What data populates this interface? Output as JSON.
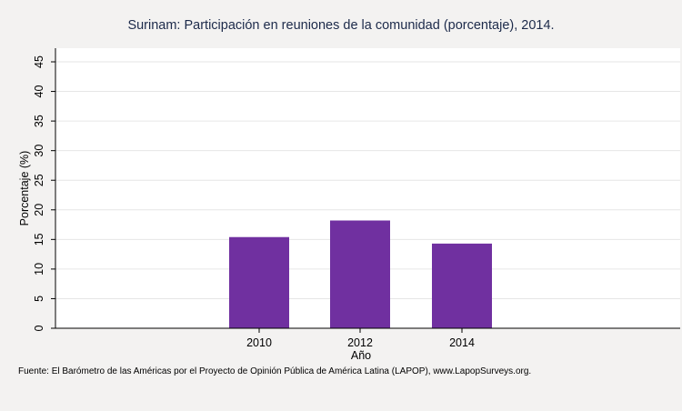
{
  "chart_data": {
    "type": "bar",
    "title": "Surinam: Participación en reuniones de la comunidad (porcentaje), 2014.",
    "xlabel": "Año",
    "ylabel": "Porcentaje (%)",
    "categories": [
      "2010",
      "2012",
      "2014"
    ],
    "values": [
      15.4,
      18.2,
      14.3
    ],
    "ylim": [
      0,
      45
    ],
    "yticks": [
      "0",
      "5",
      "10",
      "15",
      "20",
      "25",
      "30",
      "35",
      "40",
      "45"
    ],
    "grid": true,
    "bar_color": "#7030a0",
    "source": "Fuente: El Barómetro de las Américas por el Proyecto de Opinión Pública de América Latina (LAPOP), www.LapopSurveys.org."
  }
}
